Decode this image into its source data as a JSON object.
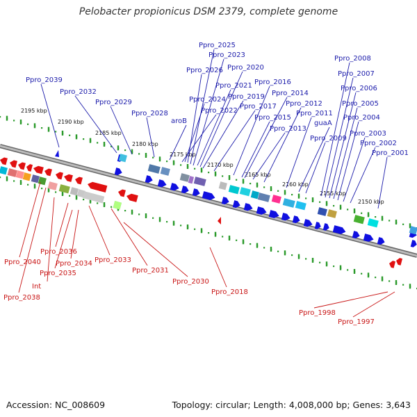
{
  "title": "Pelobacter propionicus DSM 2379, complete genome",
  "footer": {
    "accession": "Accession: NC_008609",
    "topology": "Topology: circular; Length: 4,008,000 bp; Genes: 3,643"
  },
  "colors": {
    "forward_gene": "#1010e0",
    "reverse_gene": "#e01010",
    "forward_label": "#1a1aaa",
    "reverse_label": "#c81414",
    "backbone": "#8c8c8c",
    "tick": "#2a9a2a"
  },
  "kbp_ticks": [
    {
      "label": "2195 kbp"
    },
    {
      "label": "2190 kbp"
    },
    {
      "label": "2185 kbp"
    },
    {
      "label": "2180 kbp"
    },
    {
      "label": "2175 kbp"
    },
    {
      "label": "2170 kbp"
    },
    {
      "label": "2165 kbp"
    },
    {
      "label": "2160 kbp"
    },
    {
      "label": "2155 kbp"
    },
    {
      "label": "2150 kbp"
    }
  ],
  "forward_genes": [
    "Ppro_2025",
    "Ppro_2023",
    "Ppro_2026",
    "Ppro_2020",
    "Ppro_2039",
    "Ppro_2021",
    "Ppro_2032",
    "Ppro_2024",
    "Ppro_2019",
    "Ppro_2029",
    "Ppro_2022",
    "Ppro_2017",
    "Ppro_2028",
    "aroB",
    "Ppro_2016",
    "Ppro_2014",
    "Ppro_2012",
    "Ppro_2015",
    "Ppro_2011",
    "Ppro_2013",
    "guaA",
    "Ppro_2009",
    "Ppro_2008",
    "Ppro_2007",
    "Ppro_2006",
    "Ppro_2005",
    "Ppro_2004",
    "Ppro_2003",
    "Ppro_2002",
    "Ppro_2001"
  ],
  "reverse_genes": [
    "Ppro_2040",
    "Ppro_2036",
    "Ppro_2034",
    "Ppro_2035",
    "Int",
    "Ppro_2038",
    "Ppro_2033",
    "Ppro_2031",
    "Ppro_2030",
    "Ppro_2018",
    "Ppro_1998",
    "Ppro_1997"
  ]
}
